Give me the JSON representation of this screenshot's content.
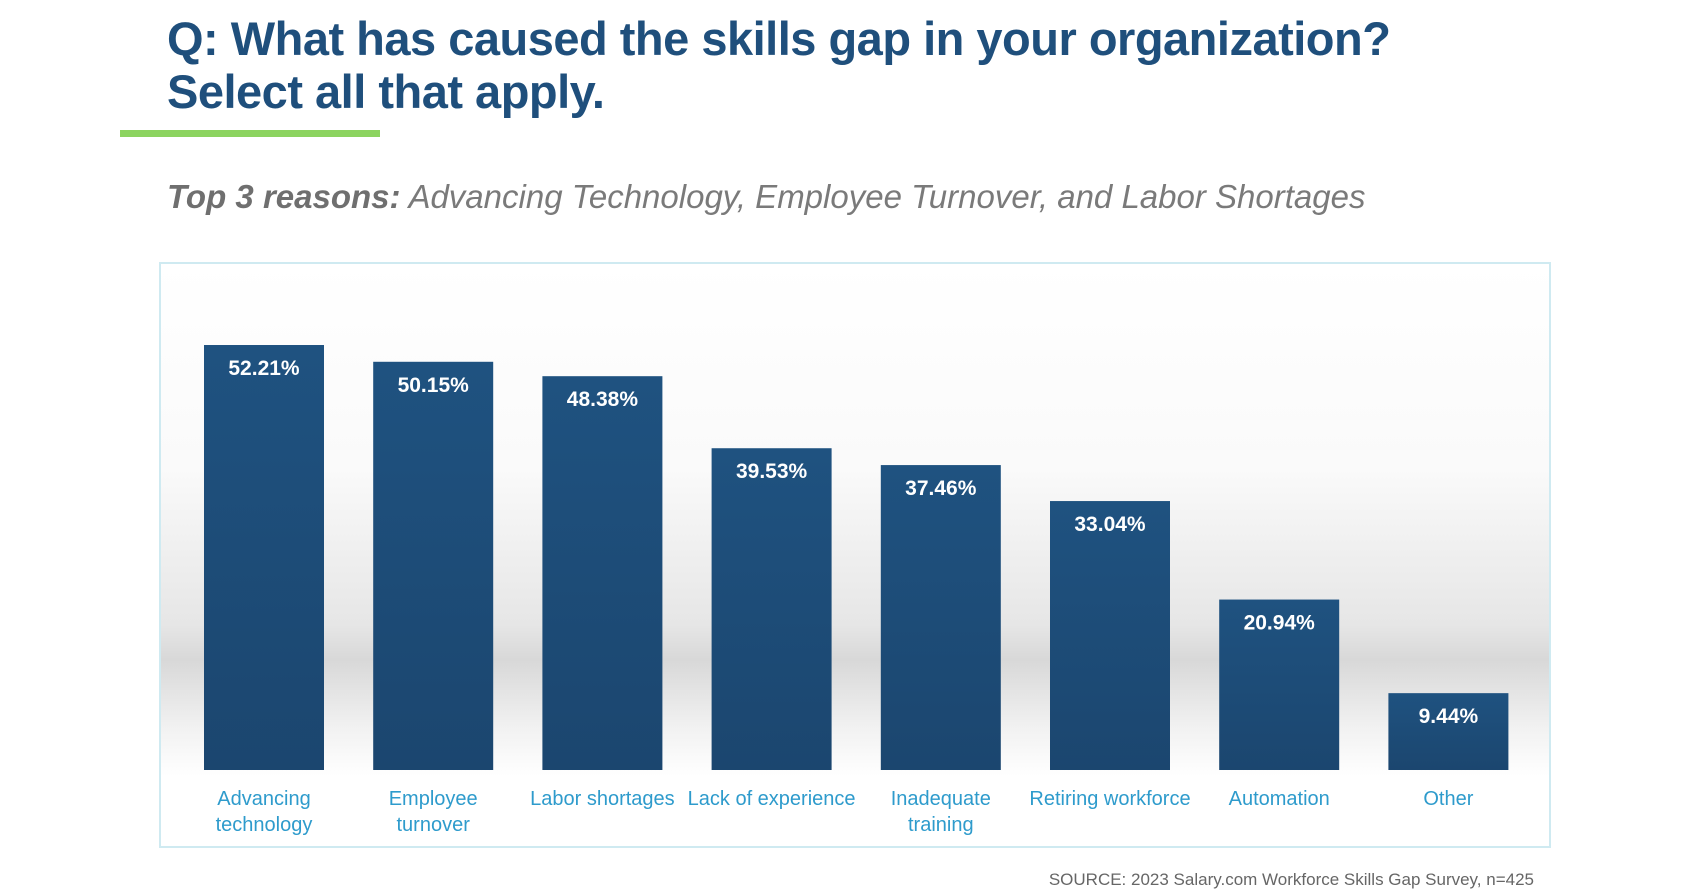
{
  "header": {
    "title_line1": "Q: What has caused the skills gap in your organization?",
    "title_line2": "Select all that apply.",
    "subtitle_bold": "Top 3 reasons:",
    "subtitle_rest": " Advancing Technology, Employee Turnover, and Labor Shortages",
    "accent_color": "#8cd460",
    "title_color": "#1f4f7c"
  },
  "chart_data": {
    "type": "bar",
    "categories": [
      [
        "Advancing",
        "technology"
      ],
      [
        "Employee",
        "turnover"
      ],
      [
        "Labor shortages"
      ],
      [
        "Lack of experience"
      ],
      [
        "Inadequate",
        "training"
      ],
      [
        "Retiring workforce"
      ],
      [
        "Automation"
      ],
      [
        "Other"
      ]
    ],
    "values": [
      52.21,
      50.15,
      48.38,
      39.53,
      37.46,
      33.04,
      20.94,
      9.44
    ],
    "data_labels": [
      "52.21%",
      "50.15%",
      "48.38%",
      "39.53%",
      "37.46%",
      "33.04%",
      "20.94%",
      "9.44%"
    ],
    "bar_color": "#1f4f7c",
    "label_color": "#2e9bcc",
    "ylim": [
      0,
      55
    ],
    "grid": false,
    "legend": "none"
  },
  "footer": {
    "source": "SOURCE: 2023 Salary.com Workforce Skills Gap Survey, n=425"
  }
}
